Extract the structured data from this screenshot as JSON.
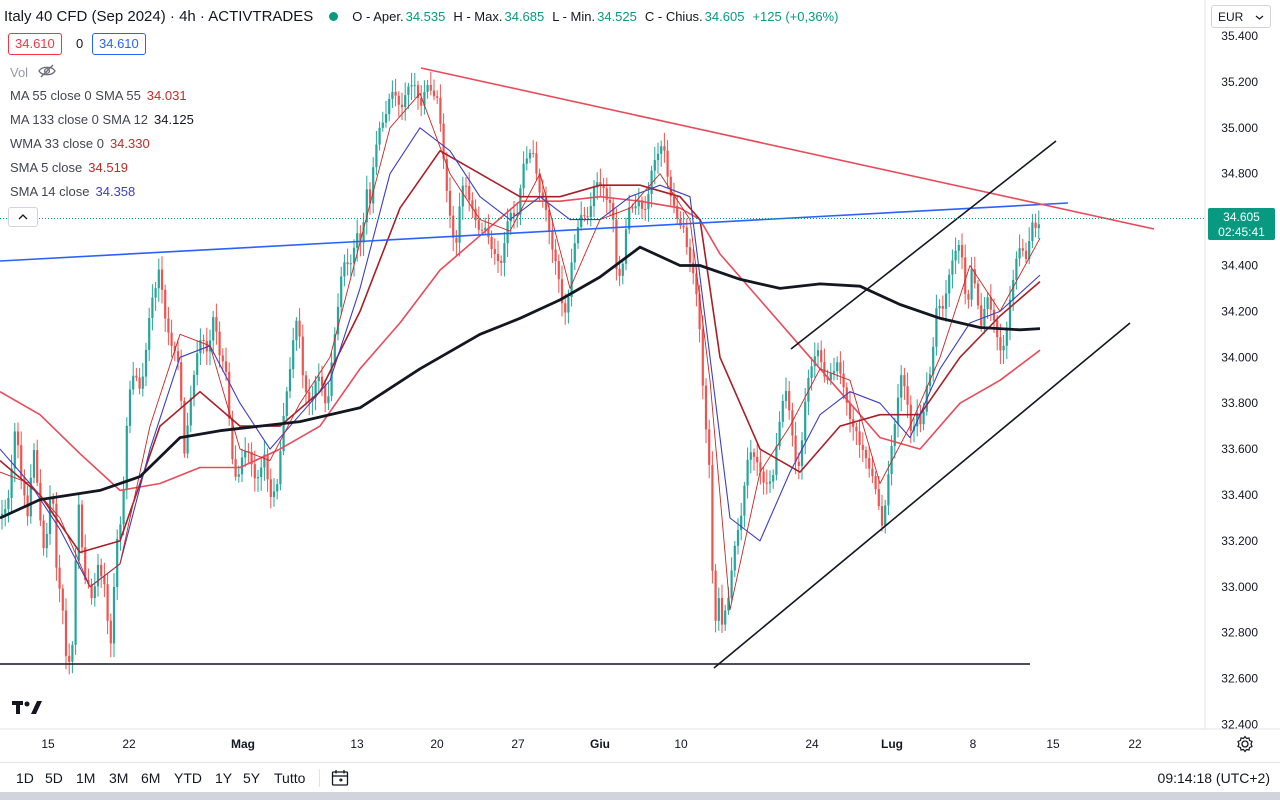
{
  "header": {
    "title": "Italy 40 CFD (Sep 2024) · 4h · ACTIVTRADES",
    "open_label": "O - Aper.",
    "open": "34.535",
    "high_label": "H - Max.",
    "high": "34.685",
    "low_label": "L - Min.",
    "low": "34.525",
    "close_label": "C - Chius.",
    "close": "34.605",
    "change": "+125 (+0,36%)",
    "sell_price": "34.610",
    "spread": "0",
    "buy_price": "34.610"
  },
  "volume_label": "Vol",
  "indicators": [
    {
      "label": "MA 55 close 0 SMA 55",
      "value": "34.031",
      "color": "#c62828"
    },
    {
      "label": "MA 133 close 0 SMA 12",
      "value": "34.125",
      "color": "#131722"
    },
    {
      "label": "WMA 33 close 0",
      "value": "34.330",
      "color": "#c62828"
    },
    {
      "label": "SMA 5 close",
      "value": "34.519",
      "color": "#c62828"
    },
    {
      "label": "SMA 14 close",
      "value": "34.358",
      "color": "#3f3fbf"
    }
  ],
  "currency": "EUR",
  "current_price": {
    "value": "34.605",
    "countdown": "02:45:41"
  },
  "bottom_bar": {
    "ranges": [
      "1D",
      "5D",
      "1M",
      "3M",
      "6M",
      "YTD",
      "1Y",
      "5Y",
      "Tutto"
    ],
    "clock": "09:14:18 (UTC+2)"
  },
  "colors": {
    "up": "#26a69a",
    "down": "#ef5350",
    "accent": "#2962ff",
    "resistance": "#e84b5a",
    "support": "#131722"
  },
  "chart_data": {
    "type": "candlestick",
    "title": "Italy 40 CFD (Sep 2024)",
    "timeframe": "4h",
    "y_ticks": [
      "35.400",
      "35.200",
      "35.000",
      "34.800",
      "34.600",
      "34.400",
      "34.200",
      "34.000",
      "33.800",
      "33.600",
      "33.400",
      "33.200",
      "33.000",
      "32.800",
      "32.600",
      "32.400"
    ],
    "x_ticks": [
      "15",
      "22",
      "Mag",
      "13",
      "20",
      "27",
      "Giu",
      "10",
      "24",
      "Lug",
      "8",
      "15",
      "22"
    ],
    "ylim": [
      32380,
      35440
    ],
    "grid": false,
    "series_path": [
      [
        0,
        33300
      ],
      [
        10,
        33380
      ],
      [
        16,
        33750
      ],
      [
        22,
        33460
      ],
      [
        28,
        33300
      ],
      [
        33,
        33600
      ],
      [
        38,
        33400
      ],
      [
        45,
        33150
      ],
      [
        52,
        33480
      ],
      [
        57,
        33000
      ],
      [
        63,
        32900
      ],
      [
        67,
        32680
      ],
      [
        72,
        32700
      ],
      [
        78,
        33400
      ],
      [
        84,
        33000
      ],
      [
        88,
        33050
      ],
      [
        93,
        32950
      ],
      [
        98,
        33100
      ],
      [
        104,
        33000
      ],
      [
        110,
        32700
      ],
      [
        116,
        33200
      ],
      [
        122,
        33300
      ],
      [
        127,
        33700
      ],
      [
        132,
        33900
      ],
      [
        137,
        33950
      ],
      [
        141,
        33850
      ],
      [
        145,
        34000
      ],
      [
        150,
        34200
      ],
      [
        155,
        34250
      ],
      [
        160,
        34450
      ],
      [
        164,
        34200
      ],
      [
        169,
        34100
      ],
      [
        175,
        34000
      ],
      [
        180,
        33900
      ],
      [
        184,
        33600
      ],
      [
        190,
        33800
      ],
      [
        196,
        34000
      ],
      [
        202,
        34050
      ],
      [
        208,
        34050
      ],
      [
        214,
        34200
      ],
      [
        220,
        34000
      ],
      [
        226,
        33900
      ],
      [
        232,
        33600
      ],
      [
        237,
        33450
      ],
      [
        243,
        33600
      ],
      [
        248,
        33550
      ],
      [
        254,
        33500
      ],
      [
        260,
        33500
      ],
      [
        265,
        33600
      ],
      [
        270,
        33350
      ],
      [
        276,
        33400
      ],
      [
        282,
        33700
      ],
      [
        288,
        33900
      ],
      [
        293,
        34050
      ],
      [
        298,
        34150
      ],
      [
        304,
        33900
      ],
      [
        310,
        33800
      ],
      [
        316,
        33900
      ],
      [
        322,
        33850
      ],
      [
        327,
        33800
      ],
      [
        332,
        34000
      ],
      [
        337,
        34200
      ],
      [
        342,
        34350
      ],
      [
        347,
        34400
      ],
      [
        352,
        34450
      ],
      [
        357,
        34550
      ],
      [
        362,
        34500
      ],
      [
        366,
        34700
      ],
      [
        370,
        34650
      ],
      [
        374,
        34900
      ],
      [
        379,
        35000
      ],
      [
        384,
        35050
      ],
      [
        390,
        35100
      ],
      [
        396,
        35150
      ],
      [
        402,
        35100
      ],
      [
        408,
        35200
      ],
      [
        414,
        35150
      ],
      [
        420,
        35100
      ],
      [
        426,
        35200
      ],
      [
        431,
        35180
      ],
      [
        437,
        35100
      ],
      [
        443,
        34900
      ],
      [
        448,
        34700
      ],
      [
        452,
        34550
      ],
      [
        456,
        34500
      ],
      [
        460,
        34650
      ],
      [
        465,
        34750
      ],
      [
        470,
        34700
      ],
      [
        476,
        34600
      ],
      [
        482,
        34550
      ],
      [
        488,
        34500
      ],
      [
        494,
        34480
      ],
      [
        500,
        34400
      ],
      [
        506,
        34550
      ],
      [
        512,
        34600
      ],
      [
        518,
        34650
      ],
      [
        523,
        34850
      ],
      [
        528,
        34900
      ],
      [
        533,
        34850
      ],
      [
        538,
        34750
      ],
      [
        544,
        34700
      ],
      [
        550,
        34550
      ],
      [
        555,
        34400
      ],
      [
        561,
        34250
      ],
      [
        567,
        34200
      ],
      [
        573,
        34500
      ],
      [
        578,
        34550
      ],
      [
        584,
        34600
      ],
      [
        590,
        34650
      ],
      [
        596,
        34800
      ],
      [
        601,
        34750
      ],
      [
        606,
        34650
      ],
      [
        612,
        34700
      ],
      [
        617,
        34350
      ],
      [
        622,
        34400
      ],
      [
        628,
        34600
      ],
      [
        633,
        34650
      ],
      [
        638,
        34700
      ],
      [
        643,
        34650
      ],
      [
        648,
        34700
      ],
      [
        653,
        34800
      ],
      [
        658,
        34900
      ],
      [
        663,
        34950
      ],
      [
        668,
        34800
      ],
      [
        673,
        34650
      ],
      [
        678,
        34550
      ],
      [
        683,
        34600
      ],
      [
        688,
        34450
      ],
      [
        693,
        34400
      ],
      [
        698,
        34200
      ],
      [
        702,
        33900
      ],
      [
        706,
        33700
      ],
      [
        710,
        33500
      ],
      [
        714,
        32800
      ],
      [
        718,
        33000
      ],
      [
        722,
        32800
      ],
      [
        727,
        32900
      ],
      [
        732,
        33100
      ],
      [
        737,
        33250
      ],
      [
        742,
        33350
      ],
      [
        747,
        33500
      ],
      [
        752,
        33600
      ],
      [
        757,
        33550
      ],
      [
        762,
        33500
      ],
      [
        767,
        33450
      ],
      [
        772,
        33400
      ],
      [
        777,
        33650
      ],
      [
        782,
        33800
      ],
      [
        787,
        33900
      ],
      [
        792,
        33650
      ],
      [
        797,
        33450
      ],
      [
        802,
        33650
      ],
      [
        807,
        33900
      ],
      [
        812,
        34000
      ],
      [
        817,
        34000
      ],
      [
        822,
        33950
      ],
      [
        827,
        33900
      ],
      [
        832,
        33950
      ],
      [
        837,
        34000
      ],
      [
        842,
        33850
      ],
      [
        847,
        33800
      ],
      [
        852,
        33700
      ],
      [
        857,
        33700
      ],
      [
        862,
        33600
      ],
      [
        867,
        33500
      ],
      [
        872,
        33500
      ],
      [
        877,
        33400
      ],
      [
        882,
        33300
      ],
      [
        887,
        33400
      ],
      [
        892,
        33600
      ],
      [
        897,
        33800
      ],
      [
        902,
        33950
      ],
      [
        907,
        33850
      ],
      [
        912,
        33600
      ],
      [
        917,
        33750
      ],
      [
        922,
        33700
      ],
      [
        927,
        33900
      ],
      [
        932,
        34000
      ],
      [
        937,
        34200
      ],
      [
        942,
        34200
      ],
      [
        947,
        34300
      ],
      [
        952,
        34450
      ],
      [
        957,
        34500
      ],
      [
        962,
        34400
      ],
      [
        967,
        34200
      ],
      [
        972,
        34400
      ],
      [
        977,
        34300
      ],
      [
        982,
        34100
      ],
      [
        987,
        34250
      ],
      [
        992,
        34200
      ],
      [
        997,
        34100
      ],
      [
        1002,
        34050
      ],
      [
        1007,
        34100
      ],
      [
        1012,
        34300
      ],
      [
        1017,
        34450
      ],
      [
        1022,
        34500
      ],
      [
        1027,
        34450
      ],
      [
        1032,
        34550
      ],
      [
        1037,
        34550
      ],
      [
        1040,
        34605
      ]
    ],
    "sma_133_path": [
      [
        0,
        33300
      ],
      [
        40,
        33380
      ],
      [
        100,
        33420
      ],
      [
        140,
        33480
      ],
      [
        180,
        33650
      ],
      [
        220,
        33680
      ],
      [
        260,
        33700
      ],
      [
        300,
        33720
      ],
      [
        360,
        33780
      ],
      [
        420,
        33950
      ],
      [
        480,
        34100
      ],
      [
        520,
        34170
      ],
      [
        560,
        34250
      ],
      [
        600,
        34350
      ],
      [
        640,
        34480
      ],
      [
        680,
        34400
      ],
      [
        700,
        34400
      ],
      [
        740,
        34340
      ],
      [
        780,
        34300
      ],
      [
        820,
        34320
      ],
      [
        860,
        34310
      ],
      [
        900,
        34230
      ],
      [
        940,
        34170
      ],
      [
        980,
        34130
      ],
      [
        1020,
        34120
      ],
      [
        1040,
        34125
      ]
    ],
    "sma_55_path": [
      [
        0,
        33850
      ],
      [
        40,
        33750
      ],
      [
        80,
        33580
      ],
      [
        120,
        33420
      ],
      [
        160,
        33450
      ],
      [
        200,
        33520
      ],
      [
        240,
        33520
      ],
      [
        280,
        33600
      ],
      [
        320,
        33700
      ],
      [
        360,
        33950
      ],
      [
        400,
        34150
      ],
      [
        440,
        34380
      ],
      [
        480,
        34530
      ],
      [
        520,
        34680
      ],
      [
        560,
        34680
      ],
      [
        600,
        34700
      ],
      [
        640,
        34680
      ],
      [
        680,
        34650
      ],
      [
        700,
        34600
      ],
      [
        720,
        34450
      ],
      [
        760,
        34250
      ],
      [
        800,
        34050
      ],
      [
        840,
        33850
      ],
      [
        880,
        33650
      ],
      [
        920,
        33600
      ],
      [
        960,
        33800
      ],
      [
        1000,
        33900
      ],
      [
        1040,
        34031
      ]
    ],
    "wma_33_path": [
      [
        0,
        33550
      ],
      [
        40,
        33400
      ],
      [
        80,
        33150
      ],
      [
        120,
        33200
      ],
      [
        160,
        33700
      ],
      [
        200,
        33850
      ],
      [
        240,
        33700
      ],
      [
        280,
        33700
      ],
      [
        320,
        33850
      ],
      [
        360,
        34200
      ],
      [
        400,
        34650
      ],
      [
        440,
        34900
      ],
      [
        480,
        34800
      ],
      [
        520,
        34700
      ],
      [
        560,
        34700
      ],
      [
        600,
        34750
      ],
      [
        640,
        34750
      ],
      [
        680,
        34700
      ],
      [
        700,
        34600
      ],
      [
        720,
        34000
      ],
      [
        760,
        33600
      ],
      [
        800,
        33500
      ],
      [
        840,
        33700
      ],
      [
        880,
        33750
      ],
      [
        920,
        33750
      ],
      [
        960,
        34000
      ],
      [
        1000,
        34180
      ],
      [
        1040,
        34330
      ]
    ],
    "sma_14_path": [
      [
        0,
        33600
      ],
      [
        30,
        33450
      ],
      [
        60,
        33250
      ],
      [
        90,
        33000
      ],
      [
        120,
        33100
      ],
      [
        150,
        33600
      ],
      [
        180,
        34000
      ],
      [
        210,
        34050
      ],
      [
        240,
        33800
      ],
      [
        270,
        33600
      ],
      [
        300,
        33750
      ],
      [
        330,
        33900
      ],
      [
        360,
        34300
      ],
      [
        390,
        34800
      ],
      [
        420,
        35000
      ],
      [
        450,
        34900
      ],
      [
        480,
        34700
      ],
      [
        510,
        34600
      ],
      [
        540,
        34700
      ],
      [
        570,
        34600
      ],
      [
        600,
        34600
      ],
      [
        630,
        34700
      ],
      [
        660,
        34750
      ],
      [
        690,
        34700
      ],
      [
        710,
        34000
      ],
      [
        730,
        33300
      ],
      [
        760,
        33200
      ],
      [
        790,
        33500
      ],
      [
        820,
        33750
      ],
      [
        850,
        33850
      ],
      [
        880,
        33800
      ],
      [
        910,
        33650
      ],
      [
        940,
        33950
      ],
      [
        970,
        34150
      ],
      [
        1000,
        34200
      ],
      [
        1040,
        34358
      ]
    ],
    "sma_5_path": [
      [
        0,
        33500
      ],
      [
        30,
        33450
      ],
      [
        60,
        33300
      ],
      [
        90,
        33000
      ],
      [
        120,
        33100
      ],
      [
        150,
        33700
      ],
      [
        180,
        34100
      ],
      [
        210,
        34050
      ],
      [
        240,
        33600
      ],
      [
        270,
        33550
      ],
      [
        300,
        33800
      ],
      [
        330,
        34000
      ],
      [
        360,
        34500
      ],
      [
        390,
        35000
      ],
      [
        420,
        35150
      ],
      [
        450,
        34800
      ],
      [
        480,
        34600
      ],
      [
        510,
        34550
      ],
      [
        540,
        34800
      ],
      [
        570,
        34300
      ],
      [
        600,
        34600
      ],
      [
        630,
        34650
      ],
      [
        660,
        34800
      ],
      [
        690,
        34600
      ],
      [
        710,
        33900
      ],
      [
        730,
        32900
      ],
      [
        760,
        33500
      ],
      [
        790,
        33700
      ],
      [
        820,
        33950
      ],
      [
        850,
        33900
      ],
      [
        880,
        33450
      ],
      [
        910,
        33700
      ],
      [
        940,
        34000
      ],
      [
        970,
        34400
      ],
      [
        1000,
        34200
      ],
      [
        1040,
        34519
      ]
    ]
  }
}
